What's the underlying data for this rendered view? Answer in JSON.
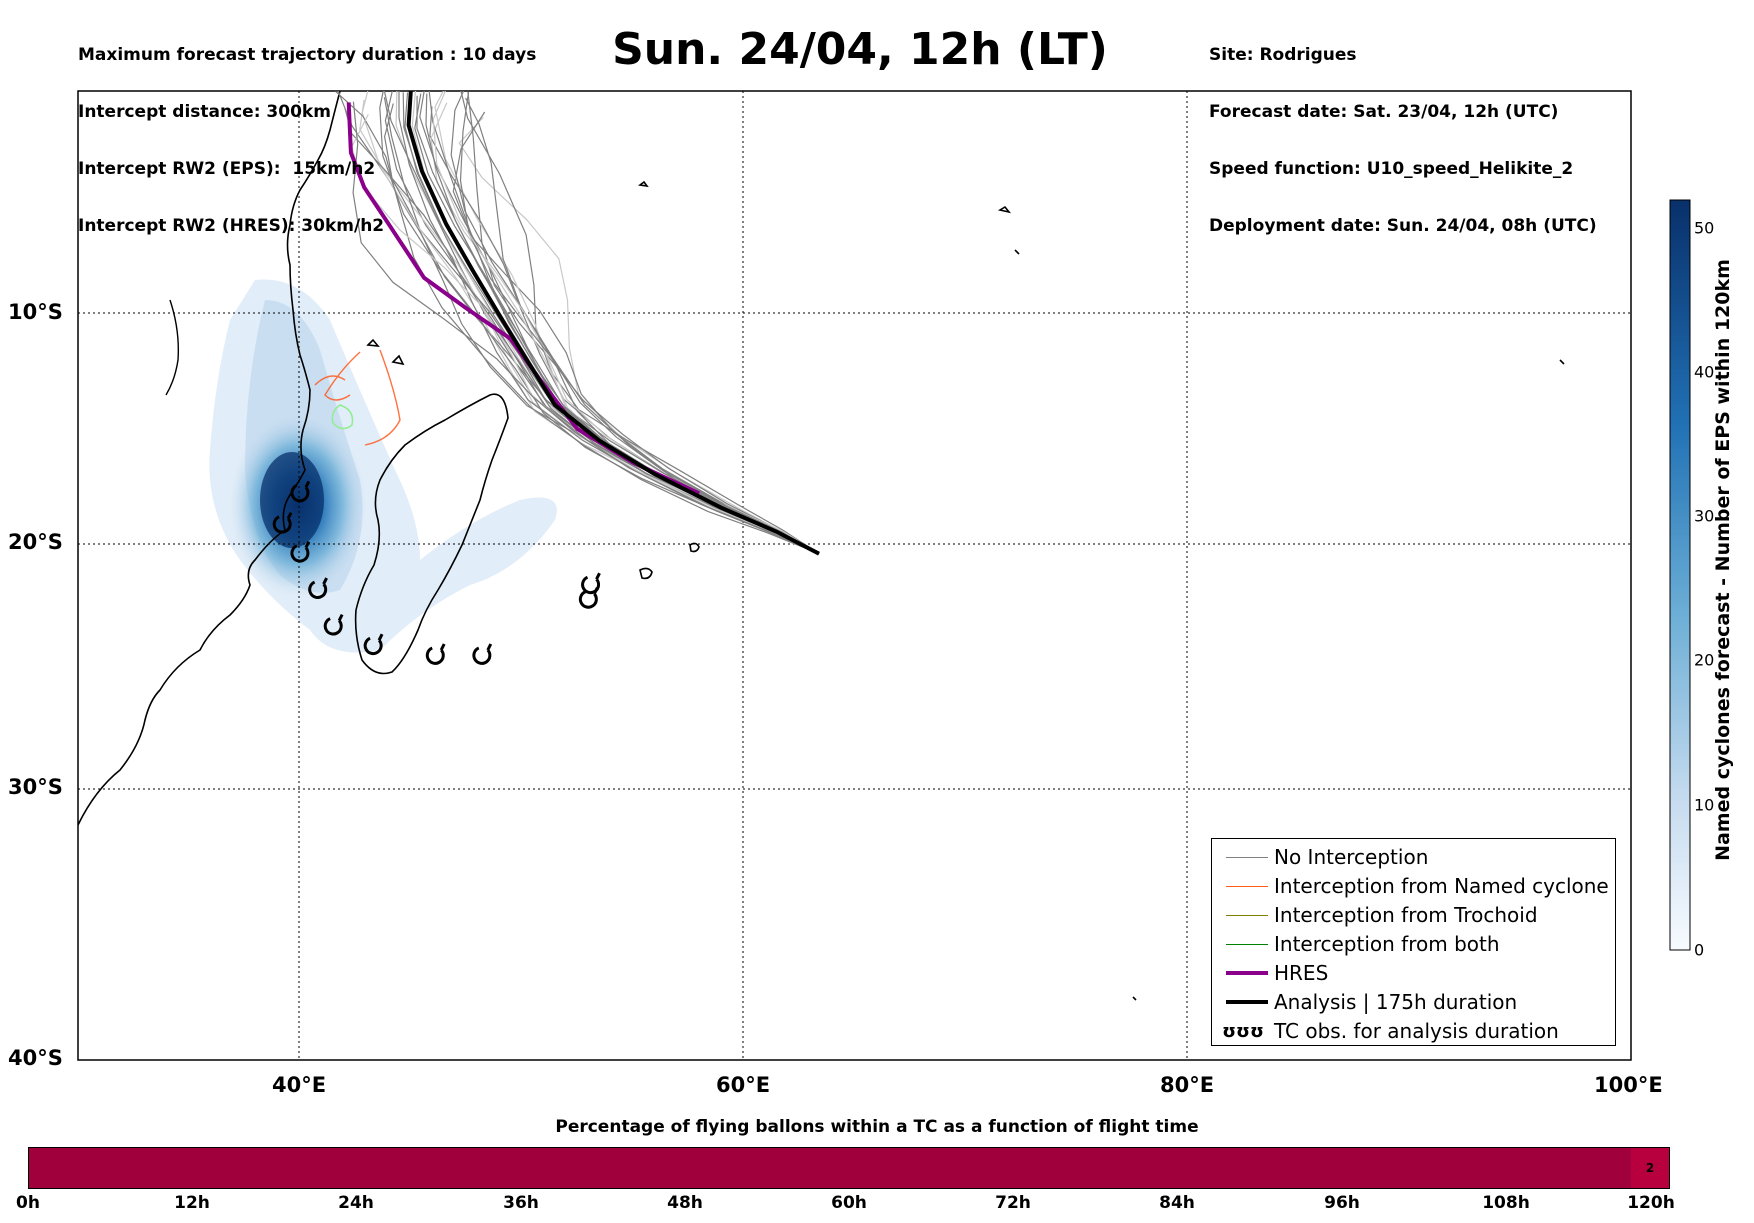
{
  "header": {
    "left_lines": [
      "Maximum forecast trajectory duration : 10 days",
      "Intercept distance: 300km",
      "Intercept RW2 (EPS):  15km/h2",
      "Intercept RW2 (HRES): 30km/h2"
    ],
    "title": "Sun. 24/04, 12h (LT)",
    "right_lines": [
      "Site: Rodrigues",
      "Forecast date: Sat. 23/04, 12h (UTC)",
      "Speed function: U10_speed_Helikite_2",
      "Deployment date: Sun. 24/04, 08h (UTC)"
    ]
  },
  "map": {
    "lon_range": [
      30,
      100
    ],
    "lat_range": [
      -40,
      0
    ],
    "lat_ticks": [
      "10°S",
      "20°S",
      "30°S",
      "40°S"
    ],
    "lon_ticks": [
      "40°E",
      "60°E",
      "80°E",
      "100°E"
    ],
    "grid": true,
    "land_color": "#ffffff",
    "coast_color": "#000000",
    "density_color": "#08306b",
    "hres_color": "#8b008b",
    "analysis_color": "#000000",
    "no_interception_color": "#808080",
    "named_cyclone_color": "#ff5a1e",
    "trochoid_color": "#808000",
    "both_color": "#008000"
  },
  "legend": {
    "items": [
      {
        "label": "No Interception",
        "color": "#808080",
        "width": 1.5
      },
      {
        "label": "Interception from Named cyclone",
        "color": "#ff5a1e",
        "width": 1.5
      },
      {
        "label": "Interception from Trochoid",
        "color": "#808000",
        "width": 1.5
      },
      {
        "label": "Interception from both",
        "color": "#008000",
        "width": 1.5
      },
      {
        "label": "HRES",
        "color": "#8b008b",
        "width": 4
      },
      {
        "label": "Analysis | 175h duration",
        "color": "#000000",
        "width": 4
      },
      {
        "label": "TC obs. for analysis duration",
        "glyph": "ʊʊʊ"
      }
    ]
  },
  "colorbar": {
    "label": "Named cyclones forecast - Number of EPS within 120km",
    "ticks": [
      "0",
      "10",
      "20",
      "30",
      "40",
      "50"
    ],
    "range": [
      0,
      52
    ],
    "low_color": "#deebf7",
    "high_color": "#08306b"
  },
  "flight_bar": {
    "title": "Percentage of flying ballons within a TC as a function of flight time",
    "ticks": [
      "0h",
      "12h",
      "24h",
      "36h",
      "48h",
      "60h",
      "72h",
      "84h",
      "96h",
      "108h",
      "120h"
    ],
    "end_value": "2",
    "bar_color": "#a0003c"
  },
  "chart_data": {
    "type": "map",
    "title": "Sun. 24/04, 12h (LT)",
    "deployment_site": {
      "name": "Rodrigues",
      "lon": 63.4,
      "lat": -19.7
    },
    "analysis_track": {
      "name": "Analysis | 175h duration",
      "points": [
        [
          63.4,
          -19.7
        ],
        [
          61.5,
          -18.8
        ],
        [
          59,
          -17.8
        ],
        [
          56,
          -16.4
        ],
        [
          53.5,
          -15
        ],
        [
          51.5,
          -13.5
        ],
        [
          50.3,
          -11.7
        ],
        [
          49,
          -9.7
        ],
        [
          47.8,
          -7.8
        ],
        [
          46.6,
          -5.8
        ],
        [
          45.5,
          -3.5
        ],
        [
          44.9,
          -1.5
        ],
        [
          45,
          0
        ]
      ]
    },
    "hres_track": {
      "name": "HRES",
      "points": [
        [
          58,
          -17.2
        ],
        [
          55,
          -15.9
        ],
        [
          52.5,
          -14.5
        ],
        [
          50.8,
          -12.4
        ],
        [
          49.5,
          -10.7
        ],
        [
          47.5,
          -9.4
        ],
        [
          45.6,
          -8.1
        ],
        [
          43.8,
          -5.5
        ],
        [
          42.9,
          -4.2
        ],
        [
          42.3,
          -2.7
        ],
        [
          42.2,
          -0.5
        ]
      ]
    },
    "tc_observations": [
      [
        40.0,
        -17.2
      ],
      [
        39.2,
        -18.5
      ],
      [
        40.0,
        -19.7
      ],
      [
        40.8,
        -21.2
      ],
      [
        41.5,
        -22.7
      ],
      [
        43.3,
        -23.5
      ],
      [
        46.1,
        -23.9
      ],
      [
        48.2,
        -23.9
      ],
      [
        53.1,
        -21.0
      ],
      [
        53.0,
        -21.6
      ]
    ]
  }
}
